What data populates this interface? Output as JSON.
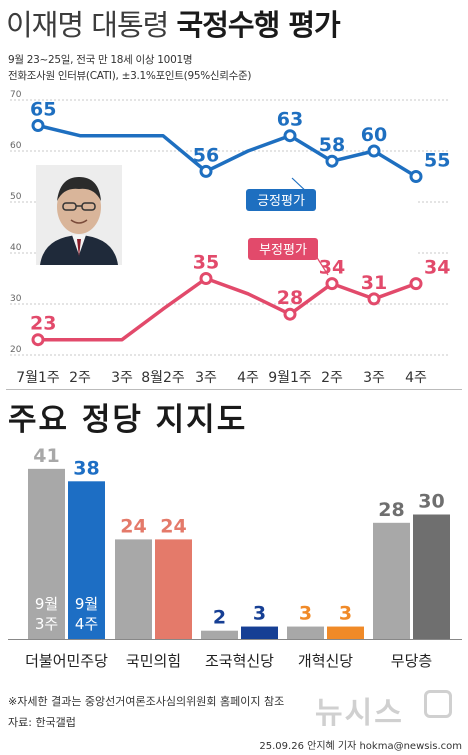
{
  "title": {
    "part1": "이재명 대통령 ",
    "part2": "국정수행 평가"
  },
  "subtitle": {
    "line1": "9월 23~25일, 전국 만 18세 이상 1001명",
    "line2": "전화조사원 인터뷰(CATI), ±3.1%포인트(95%신뢰수준)"
  },
  "chart_data": [
    {
      "type": "line",
      "x": [
        "7월1주",
        "2주",
        "3주",
        "8월2주",
        "3주",
        "4주",
        "9월1주",
        "2주",
        "3주",
        "4주"
      ],
      "ylim": [
        20,
        70
      ],
      "yticks": [
        20,
        30,
        40,
        50,
        60,
        70
      ],
      "grid": true,
      "series": [
        {
          "name": "긍정평가",
          "color": "#1e6fc0",
          "values": [
            65,
            null,
            null,
            null,
            56,
            null,
            63,
            58,
            60,
            55
          ]
        },
        {
          "name": "부정평가",
          "color": "#e24a6b",
          "values": [
            23,
            null,
            null,
            null,
            35,
            null,
            28,
            34,
            31,
            34
          ]
        }
      ]
    },
    {
      "type": "bar",
      "title": "주요 정당 지지도",
      "categories": [
        "더불어민주당",
        "국민의힘",
        "조국혁신당",
        "개혁신당",
        "무당층"
      ],
      "series": [
        {
          "name": "9월 3주",
          "values": [
            41,
            24,
            2,
            3,
            28
          ]
        },
        {
          "name": "9월 4주",
          "values": [
            38,
            24,
            3,
            3,
            30
          ]
        }
      ]
    }
  ],
  "line_points": {
    "positive": [
      65,
      63,
      63,
      63,
      56,
      60,
      63,
      58,
      60,
      55
    ],
    "negative": [
      23,
      23,
      23,
      29,
      35,
      32,
      28,
      34,
      31,
      34
    ],
    "labeled_index": [
      0,
      4,
      6,
      7,
      8,
      9
    ]
  },
  "bar_colors": {
    "더불어민주당": [
      "#a8a8a8",
      "#1d6ec4"
    ],
    "국민의힘": [
      "#a8a8a8",
      "#e47a6a"
    ],
    "조국혁신당": [
      "#a8a8a8",
      "#163f94"
    ],
    "개혁신당": [
      "#a8a8a8",
      "#f08a28"
    ],
    "무당층": [
      "#a8a8a8",
      "#6f6f6f"
    ]
  },
  "bar_label_colors": {
    "더불어민주당": [
      "#a8a8a8",
      "#1d6ec4"
    ],
    "국민의힘": [
      "#e47a6a",
      "#e47a6a"
    ],
    "조국혁신당": [
      "#163f94",
      "#163f94"
    ],
    "개혁신당": [
      "#f08a28",
      "#f08a28"
    ],
    "무당층": [
      "#6f6f6f",
      "#6f6f6f"
    ]
  },
  "bar_inner_labels": {
    "s1": [
      "9월",
      "3주"
    ],
    "s2": [
      "9월",
      "4주"
    ]
  },
  "footnote": "※자세한 결과는 중앙선거여론조사심의위원회 홈페이지 참조",
  "source": "자료: 한국갤럽",
  "credit": "25.09.26 안지혜 기자 hokma@newsis.com",
  "watermark": "뉴시스",
  "icons": {
    "photo": "president-portrait-photo"
  }
}
